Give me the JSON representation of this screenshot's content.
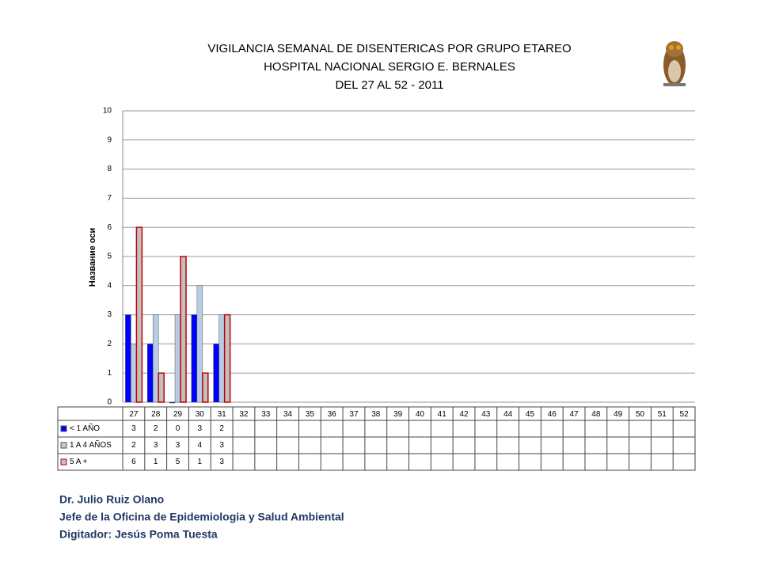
{
  "chart_data": {
    "type": "bar",
    "title": [
      "VIGILANCIA SEMANAL DE DISENTERICAS POR GRUPO ETAREO",
      "HOSPITAL NACIONAL SERGIO E. BERNALES",
      "DEL 27 AL 52 - 2011"
    ],
    "y_label": "Название оси",
    "categories": [
      "27",
      "28",
      "29",
      "30",
      "31",
      "32",
      "33",
      "34",
      "35",
      "36",
      "37",
      "38",
      "39",
      "40",
      "41",
      "42",
      "43",
      "44",
      "45",
      "46",
      "47",
      "48",
      "49",
      "50",
      "51",
      "52"
    ],
    "series": [
      {
        "name": "< 1 AÑO",
        "color": "#0000ff",
        "values": [
          3,
          2,
          0,
          3,
          2,
          null,
          null,
          null,
          null,
          null,
          null,
          null,
          null,
          null,
          null,
          null,
          null,
          null,
          null,
          null,
          null,
          null,
          null,
          null,
          null,
          null
        ]
      },
      {
        "name": "1 A 4 AÑOS",
        "color": "#b8cce4",
        "values": [
          2,
          3,
          3,
          4,
          3,
          null,
          null,
          null,
          null,
          null,
          null,
          null,
          null,
          null,
          null,
          null,
          null,
          null,
          null,
          null,
          null,
          null,
          null,
          null,
          null,
          null
        ]
      },
      {
        "name": "5 A +",
        "color": "#c0c0c0",
        "border": "#c00000",
        "values": [
          6,
          1,
          5,
          1,
          3,
          null,
          null,
          null,
          null,
          null,
          null,
          null,
          null,
          null,
          null,
          null,
          null,
          null,
          null,
          null,
          null,
          null,
          null,
          null,
          null,
          null
        ]
      }
    ],
    "ylim": [
      0,
      10
    ],
    "yticks": [
      0,
      1,
      2,
      3,
      4,
      5,
      6,
      7,
      8,
      9,
      10
    ],
    "grid": true
  },
  "footer": [
    "Dr.  Julio Ruiz Olano",
    "Jefe de la Oficina de Epidemiologia y  Salud Ambiental",
    "Digitador: Jesús Poma Tuesta"
  ]
}
